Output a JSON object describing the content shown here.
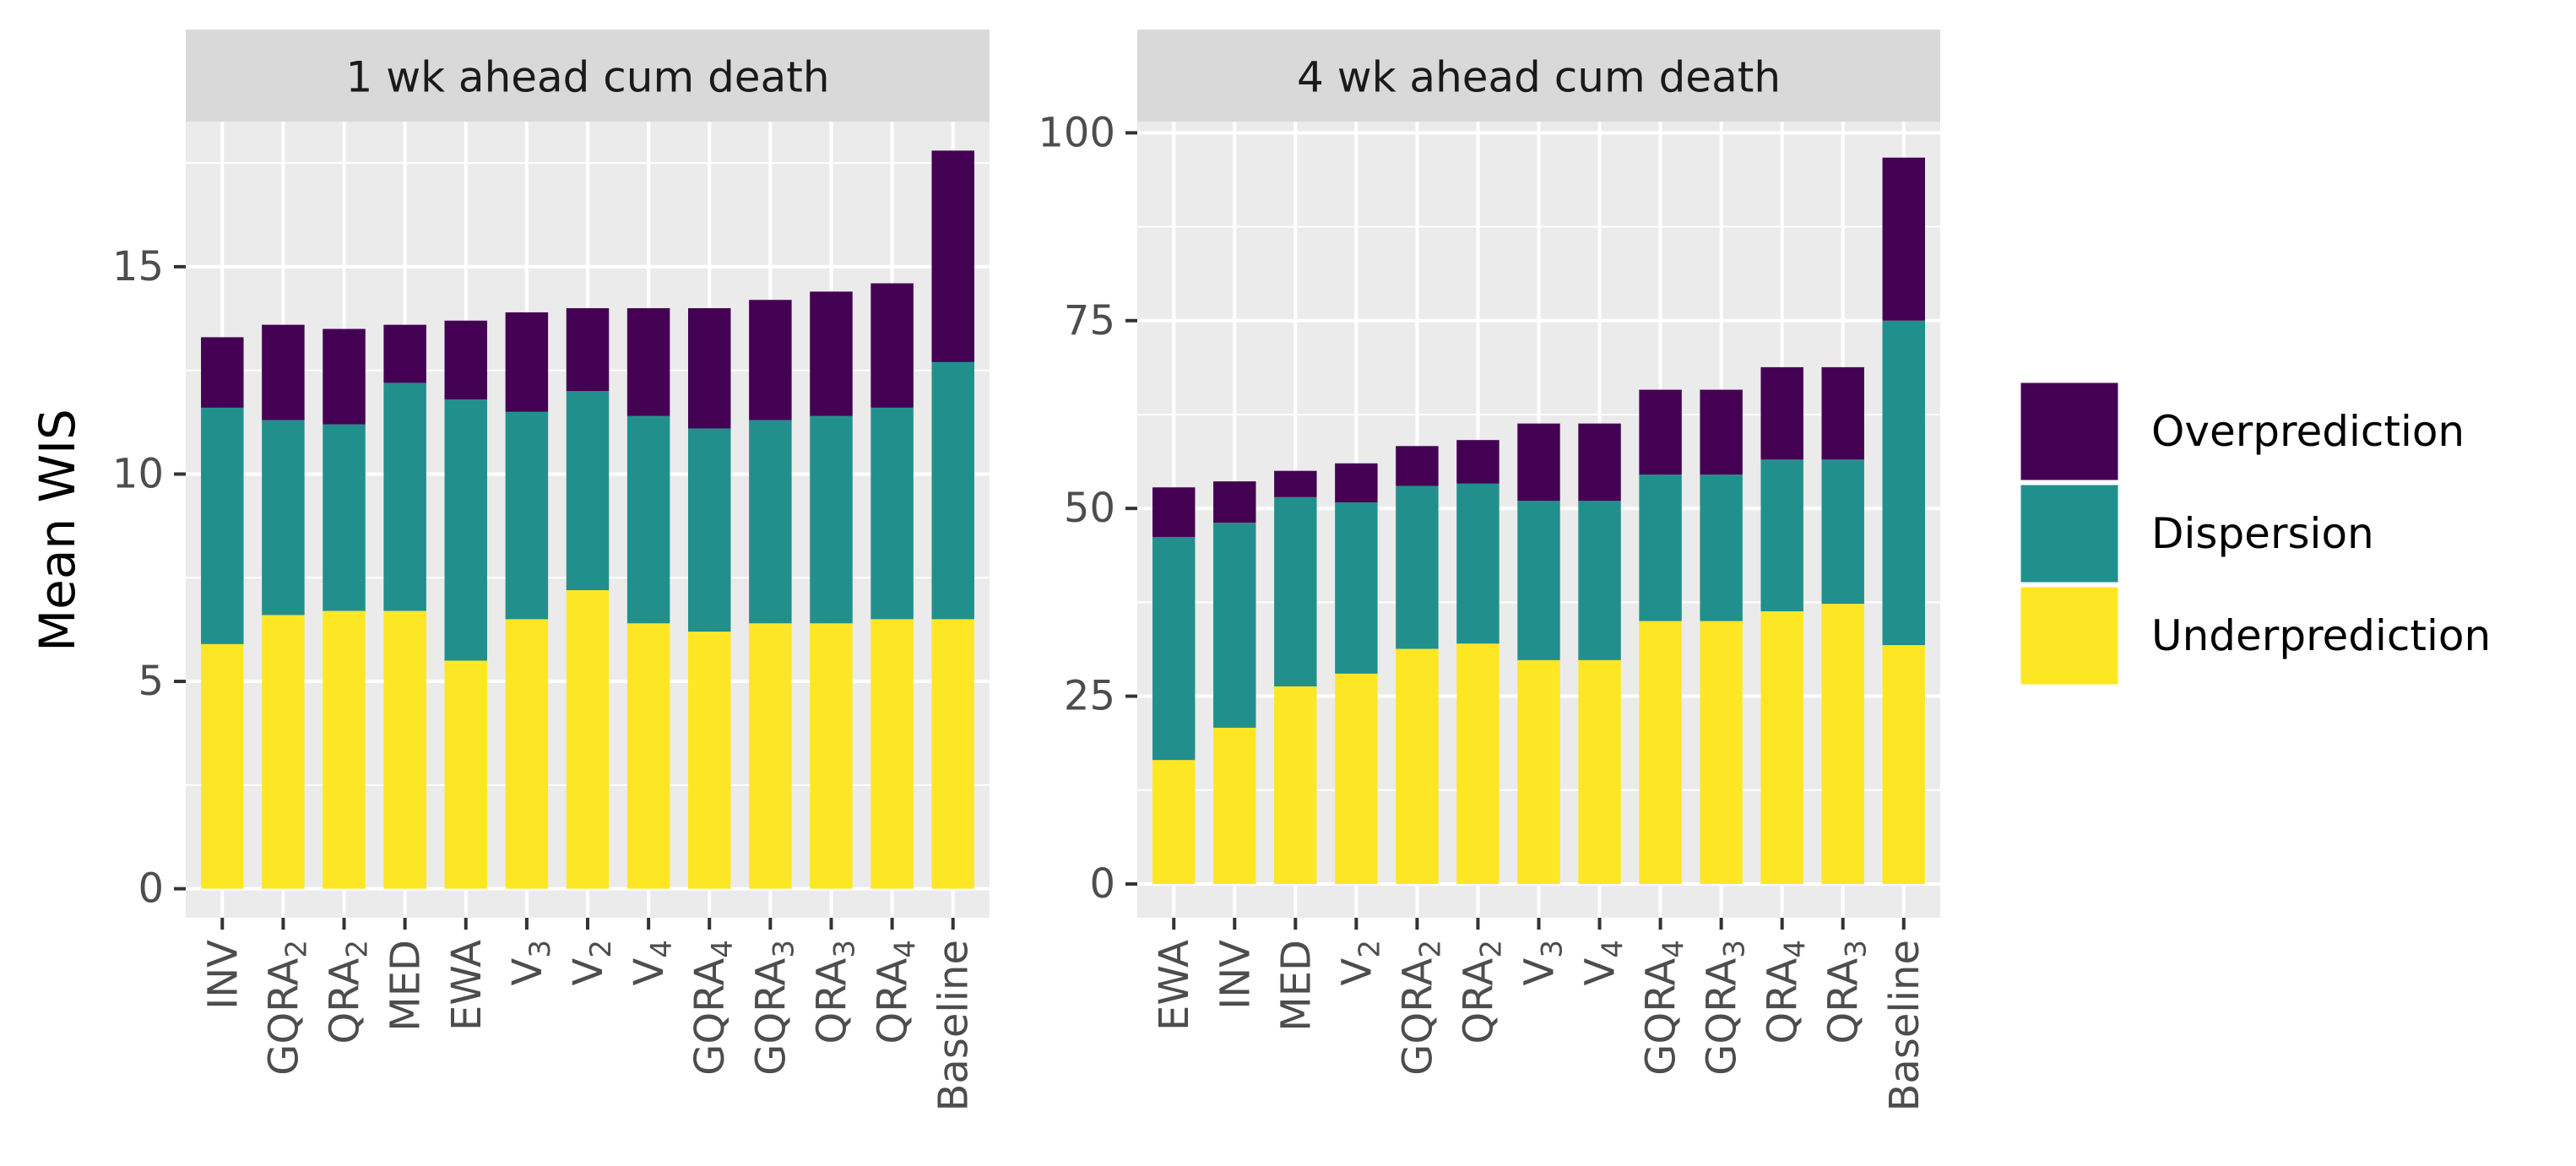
{
  "ylabel": "Mean WIS",
  "legend": {
    "position": "right",
    "items": [
      {
        "key": "over",
        "label": "Overprediction",
        "color": "#440154"
      },
      {
        "key": "disp",
        "label": "Dispersion",
        "color": "#21908C"
      },
      {
        "key": "under",
        "label": "Underprediction",
        "color": "#FDE725"
      }
    ]
  },
  "chart_data": [
    {
      "type": "bar",
      "stacked": true,
      "title": "1 wk ahead cum death",
      "categories": [
        {
          "base": "INV",
          "sub": ""
        },
        {
          "base": "GQRA",
          "sub": "2"
        },
        {
          "base": "QRA",
          "sub": "2"
        },
        {
          "base": "MED",
          "sub": ""
        },
        {
          "base": "EWA",
          "sub": ""
        },
        {
          "base": "V",
          "sub": "3"
        },
        {
          "base": "V",
          "sub": "2"
        },
        {
          "base": "V",
          "sub": "4"
        },
        {
          "base": "GQRA",
          "sub": "4"
        },
        {
          "base": "GQRA",
          "sub": "3"
        },
        {
          "base": "QRA",
          "sub": "3"
        },
        {
          "base": "QRA",
          "sub": "4"
        },
        {
          "base": "Baseline",
          "sub": ""
        }
      ],
      "ylim": [
        -0.7,
        18.5
      ],
      "yticks": [
        0,
        5,
        10,
        15
      ],
      "grid": true,
      "series": [
        {
          "name": "Underprediction",
          "values": [
            5.9,
            6.6,
            6.7,
            6.7,
            5.5,
            6.5,
            7.2,
            6.4,
            6.2,
            6.4,
            6.4,
            6.5,
            6.5
          ]
        },
        {
          "name": "Dispersion",
          "values": [
            5.7,
            4.7,
            4.5,
            5.5,
            6.3,
            5.0,
            4.8,
            5.0,
            4.9,
            4.9,
            5.0,
            5.1,
            6.2
          ]
        },
        {
          "name": "Overprediction",
          "values": [
            1.7,
            2.3,
            2.3,
            1.4,
            1.9,
            2.4,
            2.0,
            2.6,
            2.9,
            2.9,
            3.0,
            3.0,
            5.1
          ]
        }
      ]
    },
    {
      "type": "bar",
      "stacked": true,
      "title": "4 wk ahead cum death",
      "categories": [
        {
          "base": "EWA",
          "sub": ""
        },
        {
          "base": "INV",
          "sub": ""
        },
        {
          "base": "MED",
          "sub": ""
        },
        {
          "base": "V",
          "sub": "2"
        },
        {
          "base": "GQRA",
          "sub": "2"
        },
        {
          "base": "QRA",
          "sub": "2"
        },
        {
          "base": "V",
          "sub": "3"
        },
        {
          "base": "V",
          "sub": "4"
        },
        {
          "base": "GQRA",
          "sub": "4"
        },
        {
          "base": "GQRA",
          "sub": "3"
        },
        {
          "base": "QRA",
          "sub": "4"
        },
        {
          "base": "QRA",
          "sub": "3"
        },
        {
          "base": "Baseline",
          "sub": ""
        }
      ],
      "ylim": [
        -4.5,
        101.5
      ],
      "yticks": [
        0,
        25,
        50,
        75,
        100
      ],
      "grid": true,
      "series": [
        {
          "name": "Underprediction",
          "values": [
            16.5,
            20.8,
            26.3,
            28.0,
            31.3,
            32.0,
            29.8,
            29.8,
            35.0,
            35.0,
            36.3,
            37.3,
            31.8
          ]
        },
        {
          "name": "Dispersion",
          "values": [
            29.7,
            27.3,
            25.2,
            22.8,
            21.7,
            21.3,
            21.2,
            21.2,
            19.5,
            19.5,
            20.2,
            19.2,
            43.2
          ]
        },
        {
          "name": "Overprediction",
          "values": [
            6.6,
            5.5,
            3.5,
            5.2,
            5.3,
            5.8,
            10.3,
            10.3,
            11.3,
            11.3,
            12.3,
            12.3,
            21.7
          ]
        }
      ]
    }
  ]
}
